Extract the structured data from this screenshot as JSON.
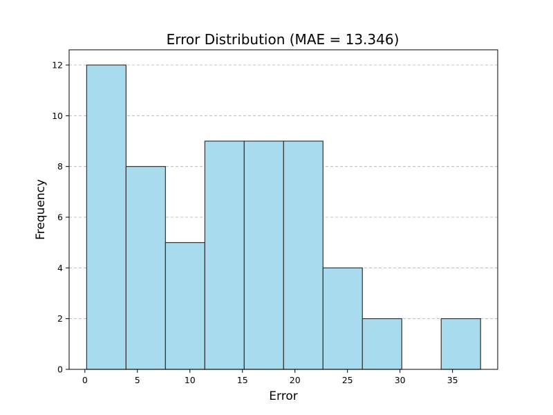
{
  "chart_data": {
    "type": "bar",
    "title": "Error Distribution (MAE = 13.346)",
    "xlabel": "Error",
    "ylabel": "Frequency",
    "bin_edges": [
      0.17,
      3.92,
      7.67,
      11.42,
      15.17,
      18.92,
      22.67,
      26.42,
      30.17,
      33.92,
      37.67
    ],
    "counts": [
      12,
      8,
      5,
      9,
      9,
      9,
      4,
      2,
      0,
      2
    ],
    "xlim": [
      -1.5,
      39.3
    ],
    "ylim": [
      0,
      12.6
    ],
    "xticks": [
      0,
      5,
      10,
      15,
      20,
      25,
      30,
      35
    ],
    "yticks": [
      0,
      2,
      4,
      6,
      8,
      10,
      12
    ],
    "grid": "y-dashed",
    "bar_color": "#a8dbee",
    "edge_color": "#333333"
  }
}
